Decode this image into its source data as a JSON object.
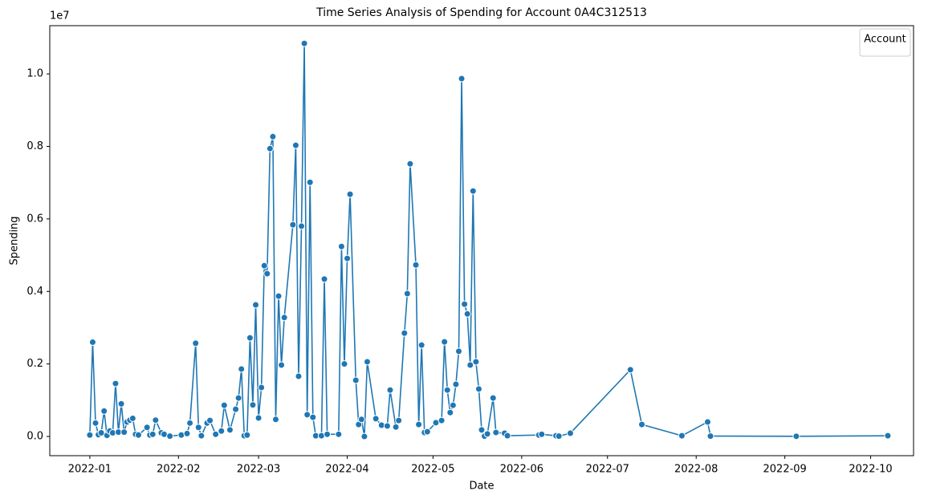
{
  "chart_data": {
    "type": "line",
    "title": "Time Series Analysis of Spending for Account 0A4C312513",
    "x_label": "Date",
    "y_label": "Spending",
    "y_offset_label": "1e7",
    "legend_title": "Account",
    "legend_position": "upper right",
    "x": [
      18993,
      18994,
      18995,
      18996,
      18997,
      18998,
      18999,
      19000,
      19001,
      19002,
      19003,
      19004,
      19005,
      19006,
      19007,
      19008,
      19009,
      19010,
      19013,
      19014,
      19015,
      19016,
      19018,
      19019,
      19021,
      19025,
      19027,
      19028,
      19030,
      19031,
      19032,
      19034,
      19035,
      19037,
      19039,
      19040,
      19042,
      19044,
      19045,
      19046,
      19047,
      19048,
      19049,
      19050,
      19051,
      19052,
      19053,
      19054,
      19055,
      19056,
      19057,
      19058,
      19059,
      19060,
      19061,
      19064,
      19065,
      19066,
      19067,
      19068,
      19069,
      19070,
      19071,
      19072,
      19074,
      19075,
      19076,
      19080,
      19081,
      19082,
      19083,
      19084,
      19086,
      19087,
      19088,
      19089,
      19090,
      19093,
      19095,
      19097,
      19098,
      19100,
      19101,
      19103,
      19104,
      19105,
      19107,
      19108,
      19109,
      19110,
      19111,
      19114,
      19116,
      19117,
      19118,
      19119,
      19120,
      19121,
      19122,
      19123,
      19124,
      19125,
      19126,
      19127,
      19128,
      19129,
      19130,
      19131,
      19132,
      19134,
      19135,
      19138,
      19139,
      19150,
      19151,
      19156,
      19157,
      19161,
      19182,
      19186,
      19200,
      19209,
      19210,
      19240,
      19272
    ],
    "series": [
      {
        "name": "0A4C312513",
        "color": "#1f77b4",
        "values": [
          0.004,
          0.26,
          0.037,
          0.005,
          0.01,
          0.07,
          0.003,
          0.015,
          0.01,
          0.146,
          0.012,
          0.09,
          0.012,
          0.04,
          0.045,
          0.05,
          0.006,
          0.004,
          0.025,
          0.004,
          0.006,
          0.045,
          0.01,
          0.006,
          0.001,
          0.004,
          0.008,
          0.037,
          0.257,
          0.025,
          0.002,
          0.037,
          0.044,
          0.006,
          0.015,
          0.086,
          0.018,
          0.075,
          0.106,
          0.186,
          0.002,
          0.004,
          0.272,
          0.087,
          0.363,
          0.051,
          0.135,
          0.471,
          0.449,
          0.794,
          0.827,
          0.047,
          0.387,
          0.197,
          0.328,
          0.584,
          0.803,
          0.166,
          0.58,
          1.084,
          0.06,
          0.701,
          0.053,
          0.002,
          0.002,
          0.434,
          0.006,
          0.006,
          0.524,
          0.2,
          0.491,
          0.668,
          0.155,
          0.033,
          0.047,
          0.0,
          0.206,
          0.049,
          0.031,
          0.029,
          0.128,
          0.026,
          0.044,
          0.285,
          0.394,
          0.752,
          0.473,
          0.033,
          0.252,
          0.011,
          0.013,
          0.038,
          0.044,
          0.261,
          0.128,
          0.066,
          0.086,
          0.144,
          0.235,
          0.987,
          0.365,
          0.338,
          0.197,
          0.677,
          0.206,
          0.131,
          0.018,
          0.001,
          0.007,
          0.106,
          0.011,
          0.009,
          0.002,
          0.004,
          0.006,
          0.002,
          0.001,
          0.009,
          0.184,
          0.033,
          0.002,
          0.04,
          0.001,
          0.0005,
          0.002
        ]
      }
    ],
    "xlim": [
      18979,
      19281
    ],
    "xticks": [
      {
        "value": 18993,
        "label": "2022-01"
      },
      {
        "value": 19024,
        "label": "2022-02"
      },
      {
        "value": 19052,
        "label": "2022-03"
      },
      {
        "value": 19083,
        "label": "2022-04"
      },
      {
        "value": 19113,
        "label": "2022-05"
      },
      {
        "value": 19144,
        "label": "2022-06"
      },
      {
        "value": 19174,
        "label": "2022-07"
      },
      {
        "value": 19205,
        "label": "2022-08"
      },
      {
        "value": 19236,
        "label": "2022-09"
      },
      {
        "value": 19266,
        "label": "2022-10"
      }
    ],
    "ylim": [
      -0.053,
      1.133
    ],
    "yticks": [
      {
        "value": 0,
        "label": "0.0"
      },
      {
        "value": 0.2,
        "label": "0.2"
      },
      {
        "value": 0.4,
        "label": "0.4"
      },
      {
        "value": 0.6,
        "label": "0.6"
      },
      {
        "value": 0.8,
        "label": "0.8"
      },
      {
        "value": 1,
        "label": "1.0"
      }
    ],
    "grid": false
  }
}
